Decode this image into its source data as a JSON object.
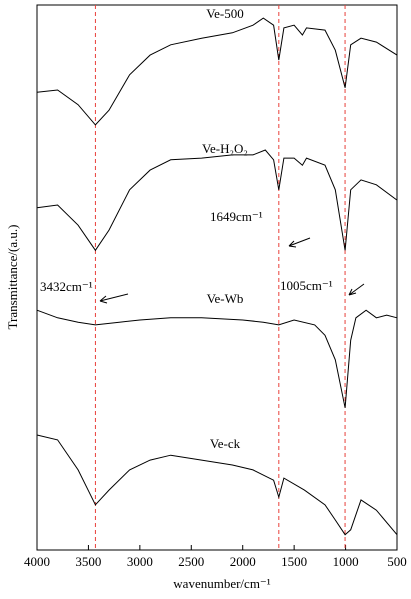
{
  "chart_data": {
    "type": "line",
    "xlabel": "wavenumber/cm⁻¹",
    "ylabel": "Transmittance/(a.u.)",
    "xlim": [
      4000,
      500
    ],
    "xticks": [
      4000,
      3500,
      3000,
      2500,
      2000,
      1500,
      1000,
      500
    ],
    "ylim": [
      0,
      100
    ],
    "series": [
      {
        "name": "Ve-500",
        "color": "#000000",
        "x": [
          4000,
          3800,
          3600,
          3432,
          3300,
          3100,
          2900,
          2700,
          2400,
          2100,
          1900,
          1800,
          1700,
          1649,
          1600,
          1500,
          1420,
          1380,
          1200,
          1100,
          1005,
          950,
          850,
          700,
          500
        ],
        "values": [
          84.0,
          84.4,
          81.7,
          78.0,
          80.7,
          87.2,
          90.8,
          92.7,
          93.9,
          94.9,
          96.3,
          97.6,
          96.3,
          89.9,
          95.8,
          96.3,
          94.5,
          95.8,
          95.4,
          91.7,
          84.8,
          92.7,
          93.9,
          93.2,
          90.8
        ]
      },
      {
        "name": "Ve-H₂O₂",
        "color": "#000000",
        "x": [
          4000,
          3800,
          3600,
          3432,
          3300,
          3100,
          2900,
          2700,
          2400,
          2100,
          1900,
          1780,
          1700,
          1649,
          1600,
          1500,
          1420,
          1380,
          1200,
          1100,
          1005,
          950,
          850,
          700,
          500
        ],
        "values": [
          62.8,
          63.3,
          59.6,
          55.0,
          58.7,
          66.1,
          69.7,
          71.6,
          71.9,
          72.5,
          72.5,
          73.4,
          71.6,
          66.1,
          71.9,
          71.9,
          70.6,
          71.9,
          70.6,
          66.1,
          55.0,
          66.1,
          67.9,
          67.0,
          64.2
        ]
      },
      {
        "name": "Ve-Wb",
        "color": "#000000",
        "x": [
          4000,
          3800,
          3600,
          3432,
          3200,
          3000,
          2700,
          2400,
          2000,
          1800,
          1649,
          1500,
          1300,
          1200,
          1100,
          1005,
          950,
          900,
          800,
          700,
          600,
          500
        ],
        "values": [
          44.0,
          42.6,
          41.8,
          41.3,
          41.8,
          42.2,
          42.6,
          42.6,
          42.2,
          41.8,
          41.3,
          42.2,
          41.3,
          39.4,
          34.9,
          26.1,
          38.5,
          42.6,
          44.0,
          42.6,
          43.1,
          42.6
        ]
      },
      {
        "name": "Ve-ck",
        "color": "#000000",
        "x": [
          4000,
          3800,
          3600,
          3432,
          3300,
          3100,
          2900,
          2700,
          2400,
          2100,
          1900,
          1700,
          1649,
          1600,
          1400,
          1200,
          1100,
          1005,
          950,
          850,
          700,
          500
        ],
        "values": [
          21.1,
          20.2,
          14.7,
          8.3,
          11.0,
          14.7,
          16.5,
          17.4,
          16.5,
          15.6,
          14.7,
          12.8,
          9.7,
          13.2,
          11.0,
          8.3,
          5.5,
          2.8,
          3.7,
          9.2,
          7.3,
          2.8
        ]
      }
    ],
    "reference_lines": {
      "x": [
        3432,
        1649,
        1005
      ],
      "color": "#e8403a"
    },
    "annotations": [
      "3432cm⁻¹",
      "1649cm⁻¹",
      "1005cm⁻¹"
    ]
  }
}
